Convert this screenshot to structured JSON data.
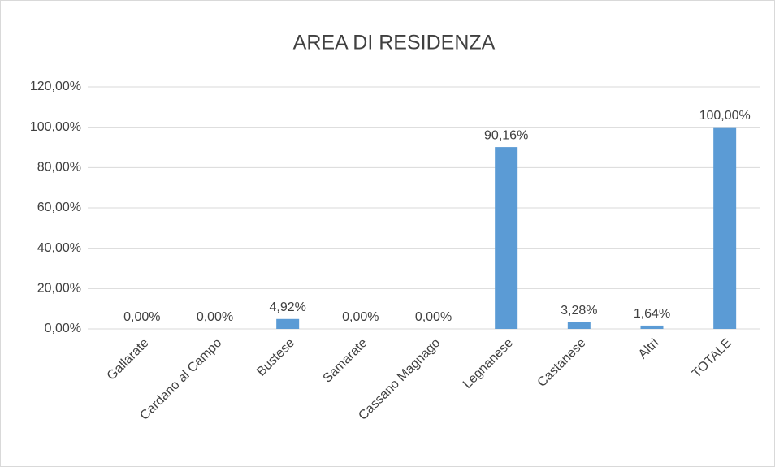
{
  "chart_data": {
    "type": "bar",
    "title": "AREA DI RESIDENZA",
    "categories": [
      "Gallarate",
      "Cardano al Campo",
      "Bustese",
      "Samarate",
      "Cassano Magnago",
      "Legnanese",
      "Castanese",
      "Altri",
      "TOTALE"
    ],
    "values": [
      0,
      0,
      4.92,
      0,
      0,
      90.16,
      3.28,
      1.64,
      100
    ],
    "value_labels": [
      "0,00%",
      "0,00%",
      "4,92%",
      "0,00%",
      "0,00%",
      "90,16%",
      "3,28%",
      "1,64%",
      "100,00%"
    ],
    "color": "#5b9bd5",
    "ylim": [
      0,
      120
    ],
    "yticks": [
      {
        "value": 0,
        "label": "0,00%"
      },
      {
        "value": 20,
        "label": "20,00%"
      },
      {
        "value": 40,
        "label": "40,00%"
      },
      {
        "value": 60,
        "label": "60,00%"
      },
      {
        "value": 80,
        "label": "80,00%"
      },
      {
        "value": 100,
        "label": "100,00%"
      },
      {
        "value": 120,
        "label": "120,00%"
      }
    ],
    "grid": true
  }
}
